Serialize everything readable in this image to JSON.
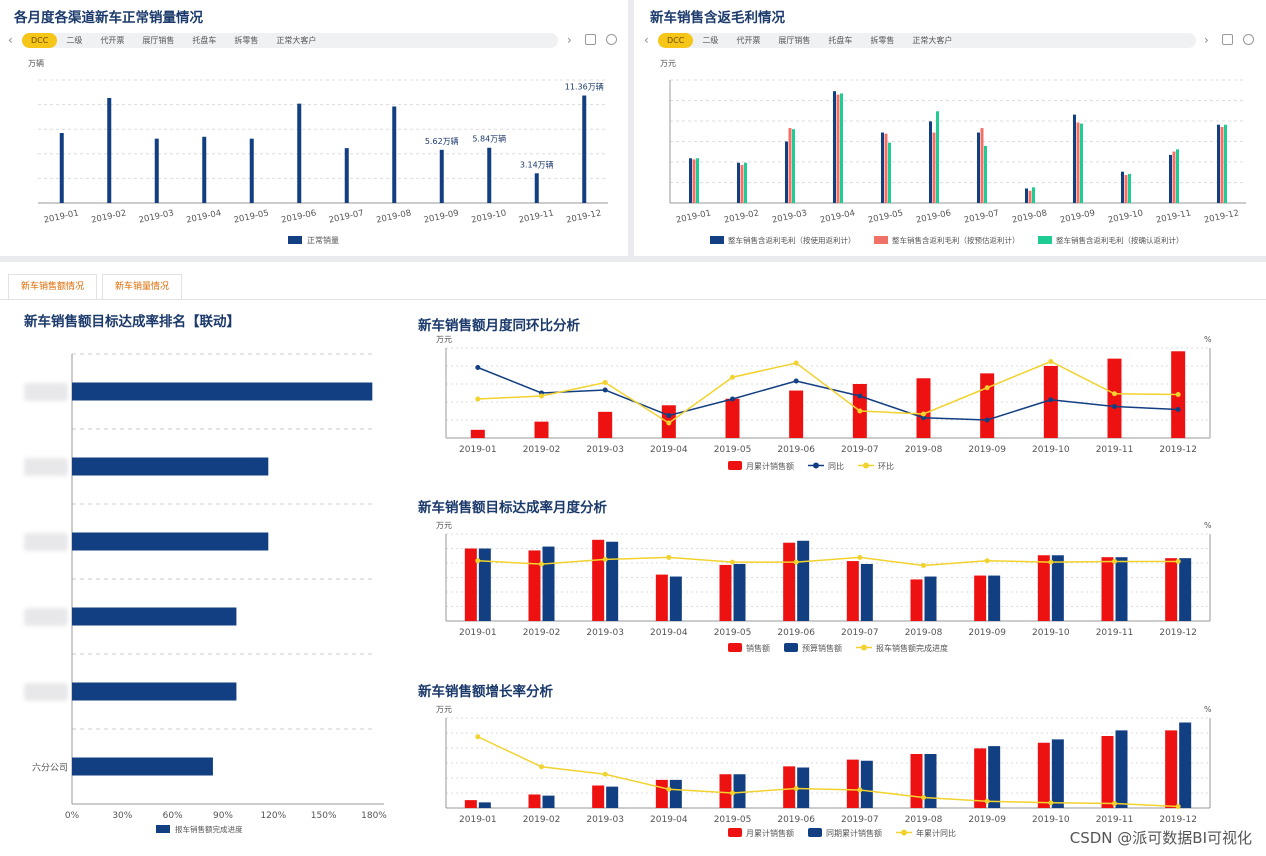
{
  "colors": {
    "navy": "#123f82",
    "red": "#ee1111",
    "salmon": "#f07168",
    "teal": "#1fcc94",
    "yellow": "#f2d22e"
  },
  "panel1": {
    "title": "各月度各渠道新车正常销量情况",
    "tabs": [
      "DCC",
      "二级",
      "代开票",
      "展厅销售",
      "托盘车",
      "拆零售",
      "正常大客户"
    ],
    "active": 0
  },
  "panel2": {
    "title": "新车销售含返毛利情况",
    "tabs": [
      "DCC",
      "二级",
      "代开票",
      "展厅销售",
      "托盘车",
      "拆零售",
      "正常大客户"
    ],
    "active": 0
  },
  "subtabs": [
    "新车销售额情况",
    "新车销量情况"
  ],
  "nav": {
    "prev": "‹",
    "next": "›"
  },
  "watermark": "CSDN @派可数据BI可视化",
  "chart_data": [
    {
      "id": "sales-volume",
      "type": "bar",
      "ylabel": "万辆",
      "categories": [
        "2019-01",
        "2019-02",
        "2019-03",
        "2019-04",
        "2019-05",
        "2019-06",
        "2019-07",
        "2019-08",
        "2019-09",
        "2019-10",
        "2019-11",
        "2019-12"
      ],
      "series": [
        {
          "name": "正常销量",
          "values": [
            7.4,
            11.1,
            6.8,
            7.0,
            6.8,
            10.5,
            5.8,
            10.2,
            5.62,
            5.84,
            3.14,
            11.36
          ]
        }
      ],
      "data_labels": {
        "8": "5.62万辆",
        "9": "5.84万辆",
        "10": "3.14万辆",
        "11": "11.36万辆"
      },
      "ylim": [
        0,
        13
      ]
    },
    {
      "id": "gross-profit",
      "type": "bar",
      "ylabel": "万元",
      "categories": [
        "2019-01",
        "2019-02",
        "2019-03",
        "2019-04",
        "2019-05",
        "2019-06",
        "2019-07",
        "2019-08",
        "2019-09",
        "2019-10",
        "2019-11",
        "2019-12"
      ],
      "series": [
        {
          "name": "整车销售含返利毛利（按使用返利计）",
          "values": [
            40,
            36,
            55,
            100,
            63,
            73,
            63,
            13,
            79,
            28,
            43,
            70
          ]
        },
        {
          "name": "整车销售含返利毛利（按预估返利计）",
          "values": [
            39,
            34,
            67,
            97,
            62,
            63,
            67,
            11,
            72,
            25,
            46,
            68
          ]
        },
        {
          "name": "整车销售含返利毛利（按确认返利计）",
          "values": [
            40,
            36,
            66,
            98,
            54,
            82,
            51,
            14,
            71,
            26,
            48,
            70
          ]
        }
      ],
      "ylim": [
        0,
        110
      ]
    },
    {
      "id": "target-rank",
      "type": "bar",
      "orientation": "horizontal",
      "title": "新车销售额目标达成率排名【联动】",
      "categories": [
        "",
        "",
        "",
        "",
        "",
        "六分公司"
      ],
      "series": [
        {
          "name": "报车销售额完成进度",
          "values": [
            179,
            117,
            117,
            98,
            98,
            84
          ]
        }
      ],
      "xticks": [
        "0%",
        "30%",
        "60%",
        "90%",
        "120%",
        "150%",
        "180%"
      ],
      "xlim": [
        0,
        180
      ]
    },
    {
      "id": "yoy-mom",
      "type": "bar+line",
      "title": "新车销售额月度同环比分析",
      "ylabel": "万元",
      "y2label": "%",
      "categories": [
        "2019-01",
        "2019-02",
        "2019-03",
        "2019-04",
        "2019-05",
        "2019-06",
        "2019-07",
        "2019-08",
        "2019-09",
        "2019-10",
        "2019-11",
        "2019-12"
      ],
      "series": [
        {
          "name": "月累计销售额",
          "kind": "bar",
          "values": [
            10,
            20,
            32,
            40,
            48,
            58,
            66,
            73,
            79,
            88,
            97,
            106
          ]
        },
        {
          "name": "同比",
          "kind": "line",
          "values": [
            94,
            60,
            64,
            30,
            52,
            76,
            56,
            27,
            24,
            51,
            42,
            38
          ]
        },
        {
          "name": "环比",
          "kind": "line",
          "values": [
            52,
            56,
            74,
            20,
            81,
            100,
            36,
            32,
            67,
            102,
            59,
            58
          ]
        }
      ],
      "ylim": [
        0,
        110
      ],
      "y2lim": [
        0,
        120
      ]
    },
    {
      "id": "target-monthly",
      "type": "bar+line",
      "title": "新车销售额目标达成率月度分析",
      "ylabel": "万元",
      "y2label": "%",
      "categories": [
        "2019-01",
        "2019-02",
        "2019-03",
        "2019-04",
        "2019-05",
        "2019-06",
        "2019-07",
        "2019-08",
        "2019-09",
        "2019-10",
        "2019-11",
        "2019-12"
      ],
      "series": [
        {
          "name": "销售额",
          "kind": "bar",
          "values": [
            75,
            73,
            84,
            48,
            58,
            81,
            62,
            43,
            47,
            68,
            66,
            65
          ]
        },
        {
          "name": "预算销售额",
          "kind": "bar",
          "values": [
            75,
            77,
            82,
            46,
            59,
            83,
            59,
            46,
            47,
            68,
            66,
            65
          ]
        },
        {
          "name": "报车销售额完成进度",
          "kind": "line",
          "values": [
            90,
            85,
            92,
            95,
            88,
            88,
            95,
            83,
            90,
            88,
            89,
            89
          ]
        }
      ],
      "ylim": [
        0,
        90
      ],
      "y2lim": [
        0,
        130
      ]
    },
    {
      "id": "growth",
      "type": "bar+line",
      "title": "新车销售额增长率分析",
      "ylabel": "万元",
      "y2label": "%",
      "categories": [
        "2019-01",
        "2019-02",
        "2019-03",
        "2019-04",
        "2019-05",
        "2019-06",
        "2019-07",
        "2019-08",
        "2019-09",
        "2019-10",
        "2019-11",
        "2019-12"
      ],
      "series": [
        {
          "name": "月累计销售额",
          "kind": "bar",
          "values": [
            7,
            12,
            20,
            25,
            30,
            37,
            43,
            48,
            53,
            58,
            64,
            69
          ]
        },
        {
          "name": "同期累计销售额",
          "kind": "bar",
          "values": [
            5,
            11,
            19,
            25,
            30,
            36,
            42,
            48,
            55,
            61,
            69,
            76
          ]
        },
        {
          "name": "年累计同比",
          "kind": "line",
          "values": [
            95,
            55,
            45,
            25,
            20,
            26,
            24,
            14,
            9,
            7,
            6,
            2
          ]
        }
      ],
      "ylim": [
        0,
        80
      ],
      "y2lim": [
        0,
        120
      ]
    }
  ]
}
